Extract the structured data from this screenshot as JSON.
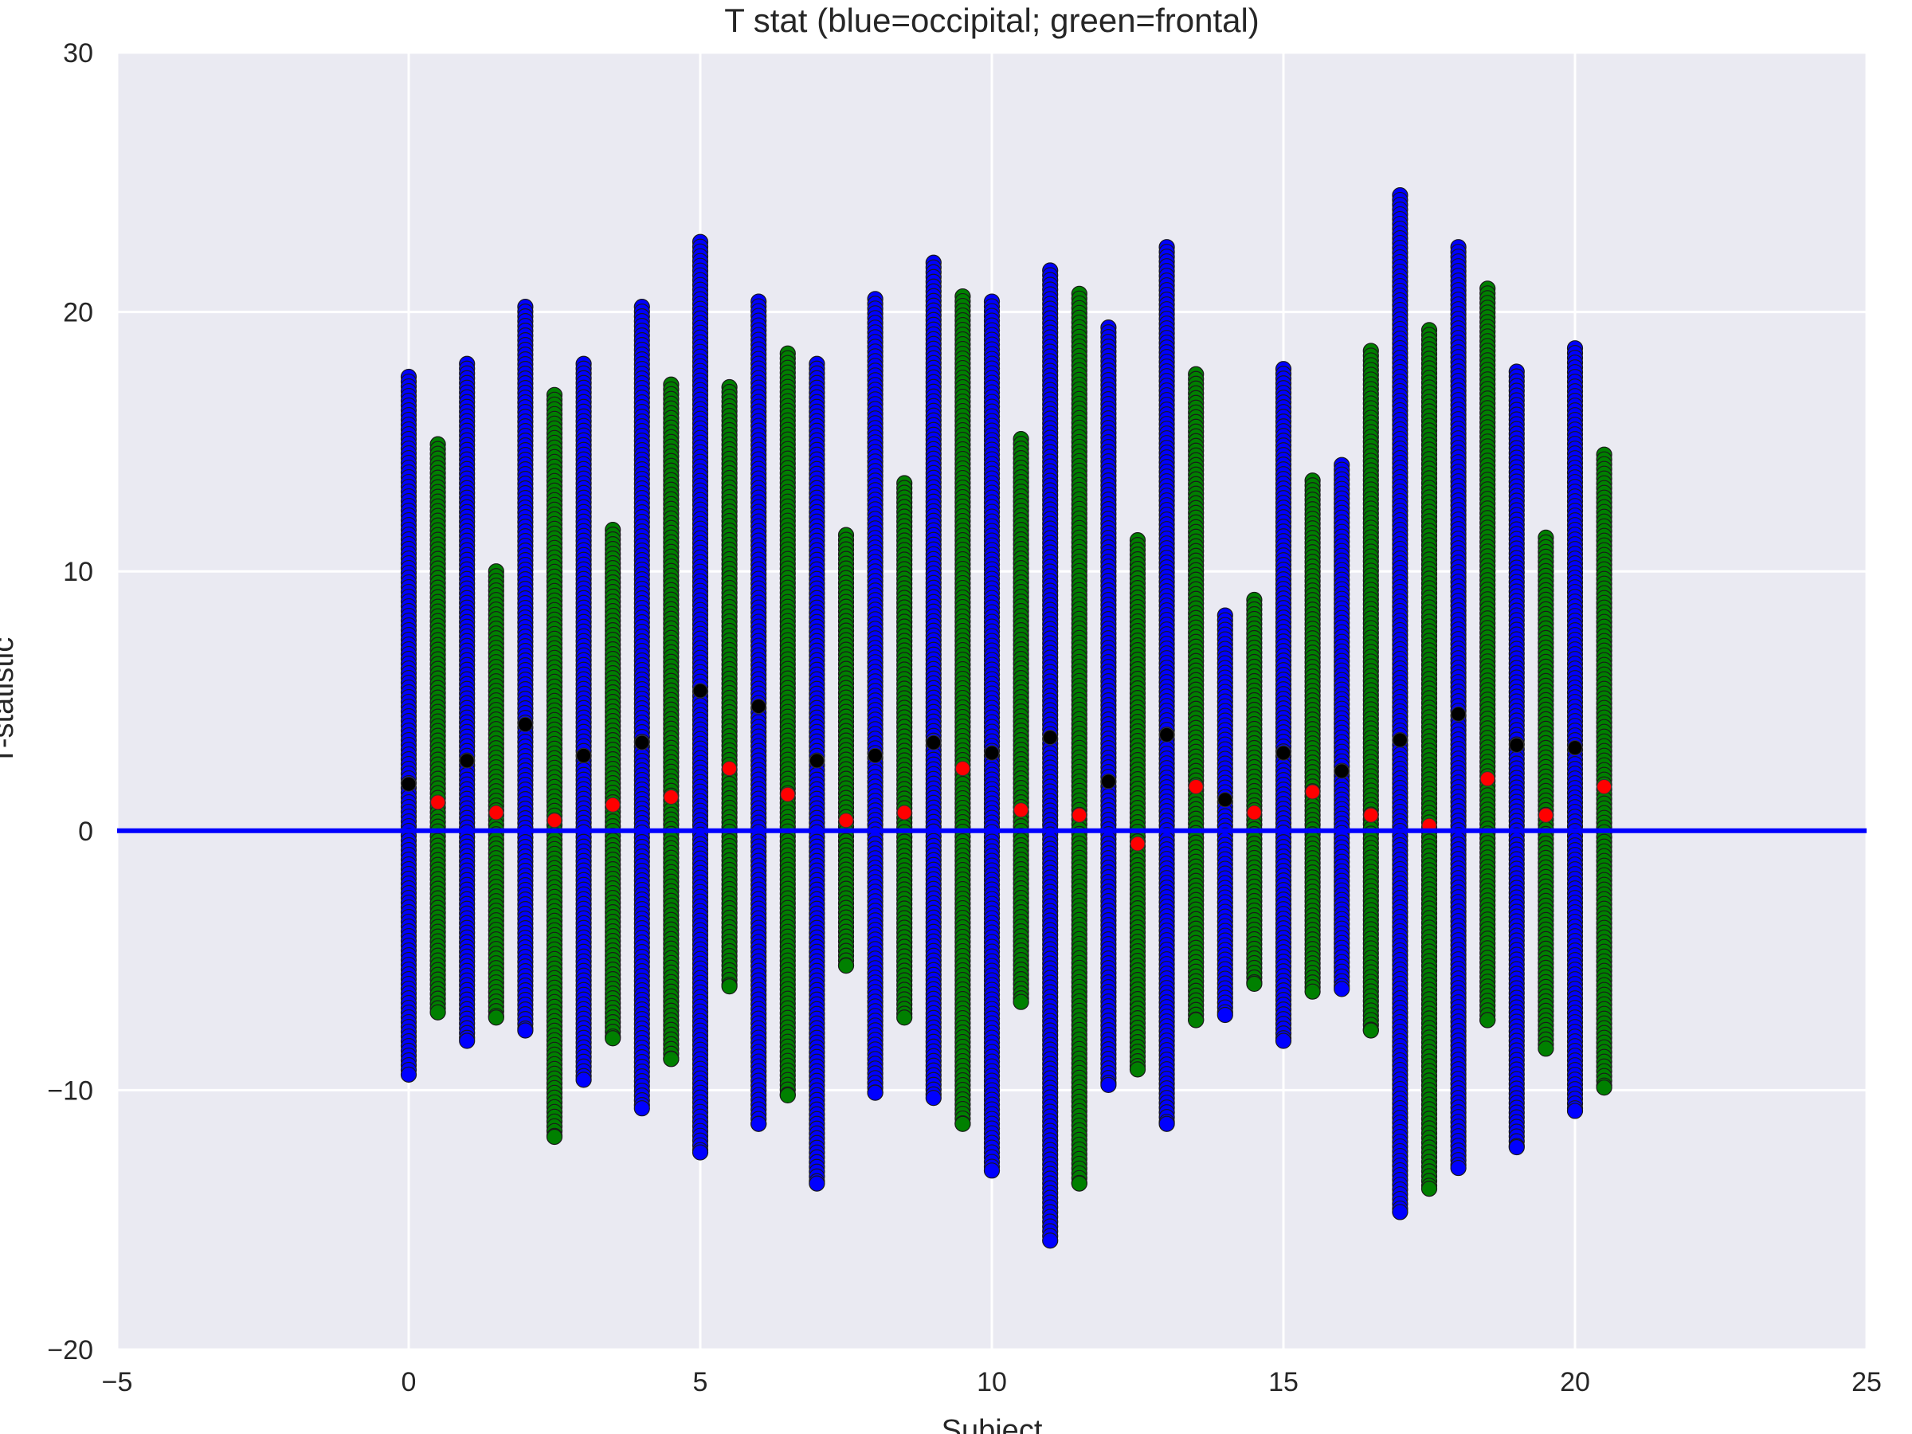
{
  "chart_data": {
    "type": "scatter",
    "title": "T stat (blue=occipital; green=frontal)",
    "xlabel": "Subject",
    "ylabel": "T-statistic",
    "xlim": [
      -5,
      25
    ],
    "ylim": [
      -20,
      30
    ],
    "xticks": [
      -5,
      0,
      5,
      10,
      15,
      20,
      25
    ],
    "yticks": [
      -20,
      -10,
      0,
      10,
      20,
      30
    ],
    "xtick_labels": [
      "−5",
      "0",
      "5",
      "10",
      "15",
      "20",
      "25"
    ],
    "ytick_labels": [
      "−20",
      "−10",
      "0",
      "10",
      "20",
      "30"
    ],
    "grid": true,
    "background": "#eaeaf2",
    "colors": {
      "occipital": "#0000ff",
      "frontal": "#008000",
      "occipital_mean": "#000000",
      "frontal_mean": "#ff0000",
      "zero_line": "#0000ff"
    },
    "reference_line": {
      "y": 0
    },
    "series": [
      {
        "name": "occipital",
        "columns": [
          {
            "x": 0,
            "min": -9.4,
            "max": 17.5,
            "mean": 1.8
          },
          {
            "x": 1,
            "min": -8.1,
            "max": 18.0,
            "mean": 2.7
          },
          {
            "x": 2,
            "min": -7.7,
            "max": 20.2,
            "mean": 4.1
          },
          {
            "x": 3,
            "min": -9.6,
            "max": 18.0,
            "mean": 2.9
          },
          {
            "x": 4,
            "min": -10.7,
            "max": 20.2,
            "mean": 3.4
          },
          {
            "x": 5,
            "min": -12.4,
            "max": 22.7,
            "mean": 5.4
          },
          {
            "x": 6,
            "min": -11.3,
            "max": 20.4,
            "mean": 4.8
          },
          {
            "x": 7,
            "min": -13.6,
            "max": 18.0,
            "mean": 2.7
          },
          {
            "x": 8,
            "min": -10.1,
            "max": 20.5,
            "mean": 2.9
          },
          {
            "x": 9,
            "min": -10.3,
            "max": 21.9,
            "mean": 3.4
          },
          {
            "x": 10,
            "min": -13.1,
            "max": 20.4,
            "mean": 3.0
          },
          {
            "x": 11,
            "min": -15.8,
            "max": 21.6,
            "mean": 3.6
          },
          {
            "x": 12,
            "min": -9.8,
            "max": 19.4,
            "mean": 1.9
          },
          {
            "x": 13,
            "min": -11.3,
            "max": 22.5,
            "mean": 3.7
          },
          {
            "x": 14,
            "min": -7.1,
            "max": 8.3,
            "mean": 1.2
          },
          {
            "x": 15,
            "min": -8.1,
            "max": 17.8,
            "mean": 3.0
          },
          {
            "x": 16,
            "min": -6.1,
            "max": 14.1,
            "mean": 2.3
          },
          {
            "x": 17,
            "min": -14.7,
            "max": 24.5,
            "mean": 3.5
          },
          {
            "x": 18,
            "min": -13.0,
            "max": 22.5,
            "mean": 4.5
          },
          {
            "x": 19,
            "min": -12.2,
            "max": 17.7,
            "mean": 3.3
          },
          {
            "x": 20,
            "min": -10.8,
            "max": 18.6,
            "mean": 3.2
          }
        ]
      },
      {
        "name": "frontal",
        "columns": [
          {
            "x": 0.5,
            "min": -7.0,
            "max": 14.9,
            "mean": 1.1
          },
          {
            "x": 1.5,
            "min": -7.2,
            "max": 10.0,
            "mean": 0.7
          },
          {
            "x": 2.5,
            "min": -11.8,
            "max": 16.8,
            "mean": 0.4
          },
          {
            "x": 3.5,
            "min": -8.0,
            "max": 11.6,
            "mean": 1.0
          },
          {
            "x": 4.5,
            "min": -8.8,
            "max": 17.2,
            "mean": 1.3
          },
          {
            "x": 5.5,
            "min": -6.0,
            "max": 17.1,
            "mean": 2.4
          },
          {
            "x": 6.5,
            "min": -10.2,
            "max": 18.4,
            "mean": 1.4
          },
          {
            "x": 7.5,
            "min": -5.2,
            "max": 11.4,
            "mean": 0.4
          },
          {
            "x": 8.5,
            "min": -7.2,
            "max": 13.4,
            "mean": 0.7
          },
          {
            "x": 9.5,
            "min": -11.3,
            "max": 20.6,
            "mean": 2.4
          },
          {
            "x": 10.5,
            "min": -6.6,
            "max": 15.1,
            "mean": 0.8
          },
          {
            "x": 11.5,
            "min": -13.6,
            "max": 20.7,
            "mean": 0.6
          },
          {
            "x": 12.5,
            "min": -9.2,
            "max": 11.2,
            "mean": -0.5
          },
          {
            "x": 13.5,
            "min": -7.3,
            "max": 17.6,
            "mean": 1.7
          },
          {
            "x": 14.5,
            "min": -5.9,
            "max": 8.9,
            "mean": 0.7
          },
          {
            "x": 15.5,
            "min": -6.2,
            "max": 13.5,
            "mean": 1.5
          },
          {
            "x": 16.5,
            "min": -7.7,
            "max": 18.5,
            "mean": 0.6
          },
          {
            "x": 17.5,
            "min": -13.8,
            "max": 19.3,
            "mean": 0.2
          },
          {
            "x": 18.5,
            "min": -7.3,
            "max": 20.9,
            "mean": 2.0
          },
          {
            "x": 19.5,
            "min": -8.4,
            "max": 11.3,
            "mean": 0.6
          },
          {
            "x": 20.5,
            "min": -9.9,
            "max": 14.5,
            "mean": 1.7
          }
        ]
      }
    ]
  }
}
